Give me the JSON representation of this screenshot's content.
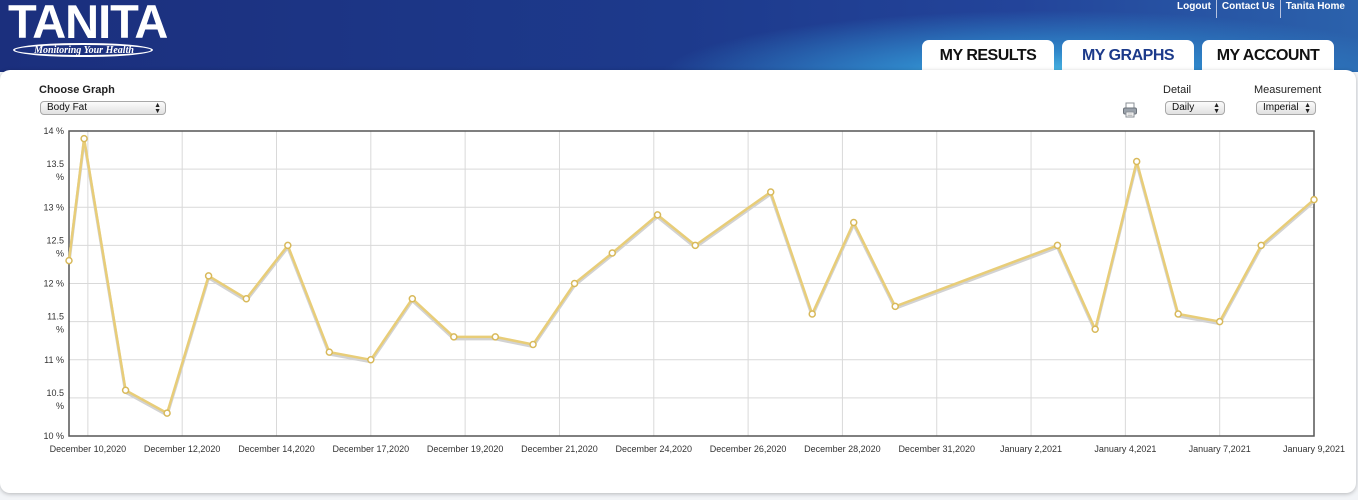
{
  "brand": {
    "logo_text": "TANITA",
    "tagline": "Monitoring Your Health"
  },
  "top_links": [
    "Logout",
    "Contact Us",
    "Tanita Home"
  ],
  "tabs": [
    {
      "label": "MY RESULTS",
      "active": false
    },
    {
      "label": "MY GRAPHS",
      "active": true
    },
    {
      "label": "MY ACCOUNT",
      "active": false
    }
  ],
  "controls": {
    "choose_graph_label": "Choose Graph",
    "graph_selected": "Body Fat",
    "detail_label": "Detail",
    "detail_selected": "Daily",
    "measurement_label": "Measurement",
    "measurement_selected": "Imperial",
    "print_icon": "printer-icon"
  },
  "colors": {
    "line": "#e8cd78",
    "header": "#1d3a8c",
    "tab_active": "#1c3a8a"
  },
  "chart_data": {
    "type": "line",
    "ylim": [
      10,
      14
    ],
    "y_tick_labels": [
      {
        "value": 14,
        "label": "14 %"
      },
      {
        "value": 13.5,
        "label": "13.5 %"
      },
      {
        "value": 13,
        "label": "13 %"
      },
      {
        "value": 12.5,
        "label": "12.5 %"
      },
      {
        "value": 12,
        "label": "12 %"
      },
      {
        "value": 11.5,
        "label": "11.5 %"
      },
      {
        "value": 11,
        "label": "11 %"
      },
      {
        "value": 10.5,
        "label": "10.5 %"
      },
      {
        "value": 10,
        "label": "10 %"
      }
    ],
    "x_tick_labels": [
      "December 10,2020",
      "December 12,2020",
      "December 14,2020",
      "December 17,2020",
      "December 19,2020",
      "December 21,2020",
      "December 24,2020",
      "December 26,2020",
      "December 28,2020",
      "December 31,2020",
      "January 2,2021",
      "January 4,2021",
      "January 7,2021",
      "January 9,2021"
    ],
    "x_tick_positions": [
      0.5,
      3.0,
      5.5,
      8.0,
      10.5,
      13.0,
      15.5,
      18.0,
      20.5,
      23.0,
      25.5,
      28.0,
      30.5,
      33.0
    ],
    "points": [
      {
        "x": 0.0,
        "y": 12.3
      },
      {
        "x": 0.4,
        "y": 13.9
      },
      {
        "x": 1.5,
        "y": 10.6
      },
      {
        "x": 2.6,
        "y": 10.3
      },
      {
        "x": 3.7,
        "y": 12.1
      },
      {
        "x": 4.7,
        "y": 11.8
      },
      {
        "x": 5.8,
        "y": 12.5
      },
      {
        "x": 6.9,
        "y": 11.1
      },
      {
        "x": 8.0,
        "y": 11.0
      },
      {
        "x": 9.1,
        "y": 11.8
      },
      {
        "x": 10.2,
        "y": 11.3
      },
      {
        "x": 11.3,
        "y": 11.3
      },
      {
        "x": 12.3,
        "y": 11.2
      },
      {
        "x": 13.4,
        "y": 12.0
      },
      {
        "x": 14.4,
        "y": 12.4
      },
      {
        "x": 15.6,
        "y": 12.9
      },
      {
        "x": 16.6,
        "y": 12.5
      },
      {
        "x": 18.6,
        "y": 13.2
      },
      {
        "x": 19.7,
        "y": 11.6
      },
      {
        "x": 20.8,
        "y": 12.8
      },
      {
        "x": 21.9,
        "y": 11.7
      },
      {
        "x": 26.2,
        "y": 12.5
      },
      {
        "x": 27.2,
        "y": 11.4
      },
      {
        "x": 28.3,
        "y": 13.6
      },
      {
        "x": 29.4,
        "y": 11.6
      },
      {
        "x": 30.5,
        "y": 11.5
      },
      {
        "x": 31.6,
        "y": 12.5
      },
      {
        "x": 33.0,
        "y": 13.1
      }
    ],
    "grid": true
  }
}
